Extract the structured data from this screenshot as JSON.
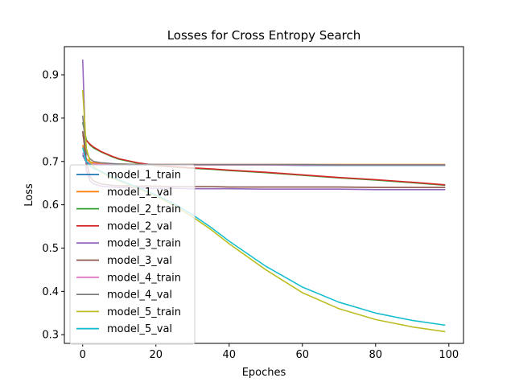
{
  "chart_data": {
    "type": "line",
    "title": "Losses for Cross Entropy Search",
    "xlabel": "Epoches",
    "ylabel": "Loss",
    "xlim": [
      -5,
      104
    ],
    "ylim": [
      0.28,
      0.965
    ],
    "xticks": [
      0,
      20,
      40,
      60,
      80,
      100
    ],
    "yticks": [
      0.3,
      0.4,
      0.5,
      0.6,
      0.7,
      0.8,
      0.9
    ],
    "legend_position": "lower-left",
    "grid": false,
    "x": [
      0,
      1,
      2,
      3,
      5,
      8,
      10,
      15,
      20,
      25,
      30,
      35,
      40,
      50,
      60,
      70,
      80,
      90,
      99
    ],
    "series": [
      {
        "name": "model_1_train",
        "color": "#1f77b4",
        "values": [
          0.715,
          0.698,
          0.694,
          0.692,
          0.692,
          0.692,
          0.692,
          0.692,
          0.692,
          0.692,
          0.692,
          0.692,
          0.692,
          0.692,
          0.691,
          0.691,
          0.691,
          0.691,
          0.691
        ]
      },
      {
        "name": "model_1_val",
        "color": "#ff7f0e",
        "values": [
          0.738,
          0.706,
          0.699,
          0.697,
          0.695,
          0.694,
          0.694,
          0.693,
          0.693,
          0.693,
          0.693,
          0.693,
          0.693,
          0.693,
          0.693,
          0.693,
          0.693,
          0.693,
          0.693
        ]
      },
      {
        "name": "model_2_train",
        "color": "#2ca02c",
        "values": [
          0.79,
          0.75,
          0.738,
          0.731,
          0.722,
          0.711,
          0.705,
          0.696,
          0.69,
          0.687,
          0.684,
          0.682,
          0.679,
          0.674,
          0.668,
          0.662,
          0.657,
          0.651,
          0.645
        ]
      },
      {
        "name": "model_2_val",
        "color": "#d62728",
        "values": [
          0.76,
          0.748,
          0.74,
          0.733,
          0.723,
          0.712,
          0.706,
          0.697,
          0.691,
          0.688,
          0.685,
          0.683,
          0.68,
          0.675,
          0.669,
          0.663,
          0.658,
          0.652,
          0.646
        ]
      },
      {
        "name": "model_3_train",
        "color": "#9467bd",
        "values": [
          0.935,
          0.68,
          0.655,
          0.648,
          0.643,
          0.641,
          0.64,
          0.639,
          0.638,
          0.638,
          0.637,
          0.637,
          0.637,
          0.636,
          0.636,
          0.636,
          0.635,
          0.635,
          0.635
        ]
      },
      {
        "name": "model_3_val",
        "color": "#8c564b",
        "values": [
          0.77,
          0.7,
          0.665,
          0.655,
          0.648,
          0.645,
          0.644,
          0.643,
          0.643,
          0.642,
          0.642,
          0.642,
          0.641,
          0.641,
          0.641,
          0.641,
          0.64,
          0.64,
          0.64
        ]
      },
      {
        "name": "model_4_train",
        "color": "#e377c2",
        "values": [
          0.72,
          0.7,
          0.696,
          0.694,
          0.693,
          0.693,
          0.693,
          0.693,
          0.693,
          0.692,
          0.692,
          0.692,
          0.692,
          0.692,
          0.692,
          0.692,
          0.692,
          0.692,
          0.692
        ]
      },
      {
        "name": "model_4_val",
        "color": "#7f7f7f",
        "values": [
          0.806,
          0.72,
          0.706,
          0.7,
          0.697,
          0.695,
          0.694,
          0.693,
          0.693,
          0.693,
          0.693,
          0.693,
          0.693,
          0.693,
          0.693,
          0.692,
          0.692,
          0.692,
          0.692
        ]
      },
      {
        "name": "model_5_train",
        "color": "#bcbd22",
        "values": [
          0.865,
          0.73,
          0.7,
          0.688,
          0.675,
          0.662,
          0.655,
          0.638,
          0.62,
          0.598,
          0.572,
          0.543,
          0.51,
          0.45,
          0.397,
          0.36,
          0.335,
          0.318,
          0.307
        ]
      },
      {
        "name": "model_5_val",
        "color": "#17becf",
        "values": [
          0.732,
          0.7,
          0.69,
          0.684,
          0.677,
          0.665,
          0.657,
          0.64,
          0.623,
          0.602,
          0.577,
          0.548,
          0.516,
          0.458,
          0.41,
          0.375,
          0.35,
          0.333,
          0.322
        ]
      }
    ]
  }
}
